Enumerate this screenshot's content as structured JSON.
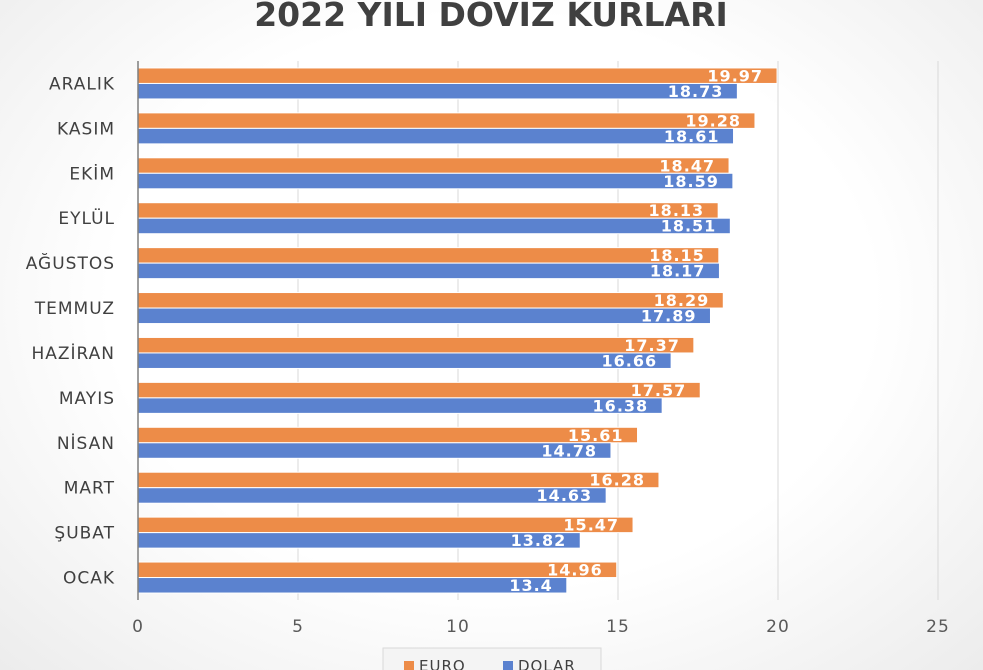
{
  "chart_data": {
    "type": "bar",
    "orientation": "horizontal",
    "title": "2022 YILI DÖVİZ KURLARI",
    "categories": [
      "OCAK",
      "ŞUBAT",
      "MART",
      "NİSAN",
      "MAYIS",
      "HAZİRAN",
      "TEMMUZ",
      "AĞUSTOS",
      "EYLÜL",
      "EKİM",
      "KASIM",
      "ARALIK"
    ],
    "series": [
      {
        "name": "EURO",
        "color": "#ED8C48",
        "values": [
          14.96,
          15.47,
          16.28,
          15.61,
          17.57,
          17.37,
          18.29,
          18.15,
          18.13,
          18.47,
          19.28,
          19.97
        ]
      },
      {
        "name": "DOLAR",
        "color": "#5B82CF",
        "values": [
          13.4,
          13.82,
          14.63,
          14.78,
          16.38,
          16.66,
          17.89,
          18.17,
          18.51,
          18.59,
          18.61,
          18.73
        ]
      }
    ],
    "xlim": [
      0,
      25
    ],
    "xticks": [
      0,
      5,
      10,
      15,
      20,
      25
    ],
    "grid": true,
    "legend_position": "bottom",
    "xlabel": "",
    "ylabel": ""
  }
}
